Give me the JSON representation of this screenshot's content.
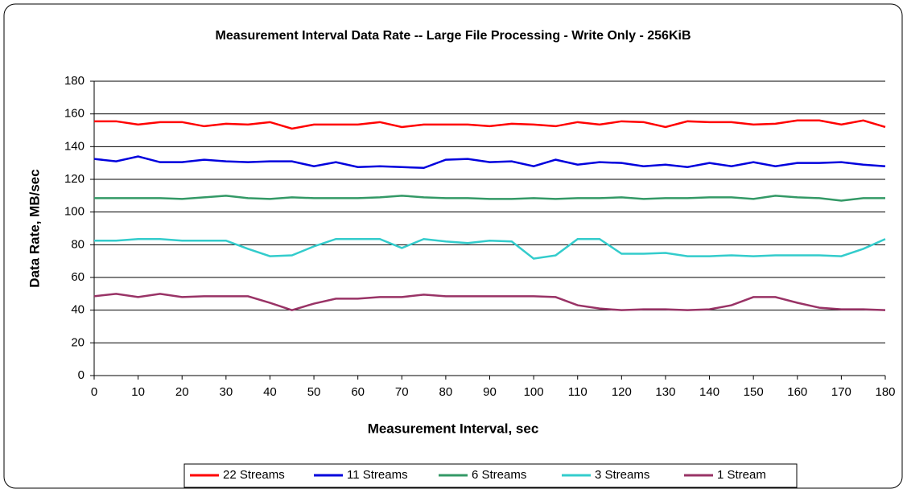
{
  "chart_data": {
    "type": "line",
    "title": "Measurement Interval Data Rate -- Large File Processing - Write Only - 256KiB",
    "xlabel": "Measurement Interval, sec",
    "ylabel": "Data Rate, MB/sec",
    "x": [
      0,
      5,
      10,
      15,
      20,
      25,
      30,
      35,
      40,
      45,
      50,
      55,
      60,
      65,
      70,
      75,
      80,
      85,
      90,
      95,
      100,
      105,
      110,
      115,
      120,
      125,
      130,
      135,
      140,
      145,
      150,
      155,
      160,
      165,
      170,
      175,
      180
    ],
    "xlim": [
      0,
      180
    ],
    "xticks": [
      0,
      10,
      20,
      30,
      40,
      50,
      60,
      70,
      80,
      90,
      100,
      110,
      120,
      130,
      140,
      150,
      160,
      170,
      180
    ],
    "ylim": [
      0,
      180
    ],
    "yticks": [
      0,
      20,
      40,
      60,
      80,
      100,
      120,
      140,
      160,
      180
    ],
    "grid": true,
    "legend": "bottom",
    "series": [
      {
        "name": "22 Streams",
        "color": "#ff0000",
        "values": [
          155.5,
          155.5,
          153.5,
          155,
          155,
          152.5,
          154,
          153.5,
          155,
          151,
          153.5,
          153.5,
          153.5,
          155,
          152,
          153.5,
          153.5,
          153.5,
          152.5,
          154,
          153.5,
          152.5,
          155,
          153.5,
          155.5,
          155,
          152,
          155.5,
          155,
          155,
          153.5,
          154,
          156,
          156,
          153.5,
          156,
          152
        ]
      },
      {
        "name": "11 Streams",
        "color": "#0000dd",
        "values": [
          132.5,
          131,
          134,
          130.5,
          130.5,
          132,
          131,
          130.5,
          131,
          131,
          128,
          130.5,
          127.5,
          128,
          127.5,
          127,
          132,
          132.5,
          130.5,
          131,
          128,
          132,
          129,
          130.5,
          130,
          128,
          129,
          127.5,
          130,
          128,
          130.5,
          128,
          130,
          130,
          130.5,
          129,
          128
        ]
      },
      {
        "name": "6 Streams",
        "color": "#339966",
        "values": [
          108.5,
          108.5,
          108.5,
          108.5,
          108,
          109,
          110,
          108.5,
          108,
          109,
          108.5,
          108.5,
          108.5,
          109,
          110,
          109,
          108.5,
          108.5,
          108,
          108,
          108.5,
          108,
          108.5,
          108.5,
          109,
          108,
          108.5,
          108.5,
          109,
          109,
          108,
          110,
          109,
          108.5,
          107,
          108.5,
          108.5
        ]
      },
      {
        "name": "3 Streams",
        "color": "#33cccc",
        "values": [
          82.5,
          82.5,
          83.5,
          83.5,
          82.5,
          82.5,
          82.5,
          77.5,
          73,
          73.5,
          79,
          83.5,
          83.5,
          83.5,
          78,
          83.5,
          82,
          81,
          82.5,
          82,
          71.5,
          73.5,
          83.5,
          83.5,
          74.5,
          74.5,
          75,
          73,
          73,
          73.5,
          73,
          73.5,
          73.5,
          73.5,
          73,
          77.5,
          83.5
        ]
      },
      {
        "name": "1 Stream",
        "color": "#993366",
        "values": [
          48.5,
          50,
          48,
          50,
          48,
          48.5,
          48.5,
          48.5,
          44.5,
          40,
          44,
          47,
          47,
          48,
          48,
          49.5,
          48.5,
          48.5,
          48.5,
          48.5,
          48.5,
          48,
          43,
          41,
          40,
          40.5,
          40.5,
          40,
          40.5,
          43,
          48,
          48,
          44.5,
          41.5,
          40.5,
          40.5,
          40
        ]
      }
    ]
  }
}
